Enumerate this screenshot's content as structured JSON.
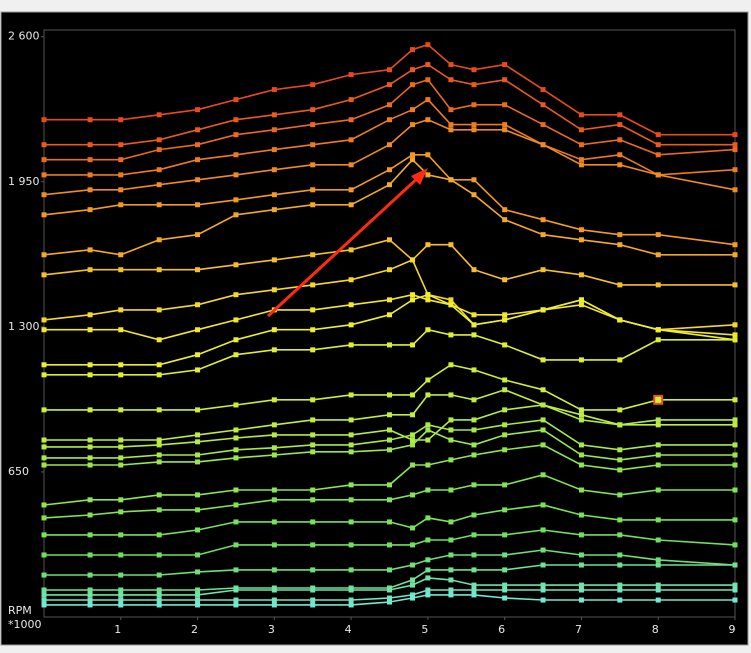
{
  "chart_data": {
    "type": "line",
    "x": [
      0,
      0.6,
      1,
      1.5,
      2,
      2.5,
      3,
      3.5,
      4,
      4.5,
      4.8,
      5,
      5.3,
      5.6,
      6,
      6.5,
      7,
      7.5,
      8,
      9
    ],
    "xlim": [
      0,
      9
    ],
    "xticks": [
      1,
      2,
      3,
      4,
      5,
      6,
      7,
      8,
      9
    ],
    "ylim": [
      0,
      2630
    ],
    "yticks": [
      650,
      {
        "value": 1300,
        "label": "1 300"
      },
      {
        "value": 1950,
        "label": "1 950"
      },
      {
        "value": 2600,
        "label": "2 600"
      }
    ],
    "ylabel": "RPM",
    "ylabel_unit": "*1000",
    "highlight": {
      "series": 12,
      "index": 18,
      "color": "#e8501e"
    },
    "series": [
      {
        "color": "#e84a1e",
        "values": [
          2228,
          2228,
          2228,
          2250,
          2273,
          2318,
          2363,
          2385,
          2430,
          2452,
          2542,
          2564,
          2475,
          2452,
          2475,
          2363,
          2250,
          2250,
          2161,
          2161
        ]
      },
      {
        "color": "#ea5a1f",
        "values": [
          2116,
          2116,
          2116,
          2138,
          2183,
          2228,
          2250,
          2273,
          2318,
          2385,
          2452,
          2475,
          2407,
          2385,
          2407,
          2295,
          2183,
          2206,
          2116,
          2116
        ]
      },
      {
        "color": "#ec6a20",
        "values": [
          2049,
          2049,
          2049,
          2094,
          2116,
          2161,
          2183,
          2206,
          2228,
          2295,
          2385,
          2407,
          2273,
          2295,
          2295,
          2206,
          2116,
          2138,
          2071,
          2094
        ]
      },
      {
        "color": "#ee7a22",
        "values": [
          1981,
          1981,
          1981,
          2004,
          2049,
          2071,
          2094,
          2116,
          2138,
          2228,
          2273,
          2318,
          2206,
          2206,
          2206,
          2116,
          2049,
          2071,
          1981,
          2004
        ]
      },
      {
        "color": "#f08a22",
        "values": [
          1892,
          1914,
          1914,
          1937,
          1959,
          1981,
          2004,
          2026,
          2026,
          2116,
          2206,
          2228,
          2183,
          2183,
          2183,
          2116,
          2026,
          2026,
          1981,
          1914
        ]
      },
      {
        "color": "#f29a24",
        "values": [
          1802,
          1825,
          1847,
          1847,
          1847,
          1869,
          1892,
          1914,
          1914,
          2004,
          2071,
          2071,
          1959,
          1959,
          1825,
          1780,
          1735,
          1713,
          1713,
          1668
        ]
      },
      {
        "color": "#f4aa26",
        "values": [
          1623,
          1645,
          1623,
          1690,
          1713,
          1802,
          1825,
          1847,
          1847,
          1937,
          2049,
          1981,
          1959,
          1892,
          1780,
          1713,
          1690,
          1668,
          1623,
          1623
        ]
      },
      {
        "color": "#f6c028",
        "values": [
          1533,
          1556,
          1556,
          1556,
          1556,
          1578,
          1600,
          1623,
          1645,
          1690,
          1600,
          1668,
          1668,
          1556,
          1511,
          1556,
          1533,
          1488,
          1488,
          1488
        ]
      },
      {
        "color": "#f6d82a",
        "values": [
          1331,
          1354,
          1376,
          1376,
          1399,
          1444,
          1466,
          1488,
          1511,
          1556,
          1600,
          1444,
          1421,
          1309,
          1331,
          1376,
          1421,
          1331,
          1287,
          1309
        ]
      },
      {
        "color": "#f4e82c",
        "values": [
          1287,
          1287,
          1287,
          1242,
          1287,
          1331,
          1376,
          1376,
          1399,
          1421,
          1444,
          1421,
          1399,
          1354,
          1354,
          1376,
          1399,
          1331,
          1287,
          1264
        ]
      },
      {
        "color": "#ecf02e",
        "values": [
          1130,
          1130,
          1130,
          1130,
          1175,
          1242,
          1287,
          1287,
          1309,
          1354,
          1421,
          1444,
          1399,
          1309,
          1331,
          1376,
          1421,
          1331,
          1287,
          1242
        ]
      },
      {
        "color": "#e0f030",
        "values": [
          1085,
          1085,
          1085,
          1085,
          1107,
          1175,
          1197,
          1197,
          1219,
          1219,
          1219,
          1287,
          1264,
          1264,
          1219,
          1152,
          1152,
          1152,
          1242,
          1242
        ]
      },
      {
        "color": "#ccf038",
        "values": [
          928,
          928,
          928,
          928,
          928,
          950,
          973,
          973,
          995,
          995,
          995,
          1062,
          1130,
          1107,
          1062,
          1018,
          928,
          928,
          973,
          973
        ]
      },
      {
        "color": "#c0ee40",
        "values": [
          793,
          793,
          793,
          793,
          816,
          838,
          861,
          883,
          883,
          906,
          906,
          995,
          995,
          973,
          1018,
          950,
          906,
          861,
          861,
          861
        ]
      },
      {
        "color": "#b4ec44",
        "values": [
          762,
          762,
          762,
          771,
          785,
          802,
          816,
          816,
          816,
          838,
          793,
          793,
          883,
          883,
          928,
          950,
          883,
          861,
          883,
          883
        ]
      },
      {
        "color": "#a8ea48",
        "values": [
          713,
          713,
          713,
          726,
          726,
          749,
          758,
          771,
          771,
          793,
          816,
          861,
          838,
          838,
          861,
          883,
          771,
          749,
          771,
          771
        ]
      },
      {
        "color": "#9ce84c",
        "values": [
          681,
          681,
          681,
          695,
          695,
          713,
          726,
          740,
          740,
          749,
          771,
          838,
          793,
          771,
          816,
          838,
          726,
          704,
          726,
          726
        ]
      },
      {
        "color": "#8ee650",
        "values": [
          502,
          525,
          525,
          547,
          547,
          569,
          569,
          569,
          592,
          592,
          681,
          681,
          704,
          726,
          749,
          771,
          681,
          659,
          681,
          681
        ]
      },
      {
        "color": "#82e454",
        "values": [
          444,
          457,
          471,
          480,
          480,
          502,
          525,
          525,
          525,
          525,
          547,
          569,
          569,
          592,
          592,
          637,
          569,
          547,
          569,
          569
        ]
      },
      {
        "color": "#78e258",
        "values": [
          368,
          368,
          368,
          368,
          390,
          426,
          426,
          426,
          426,
          426,
          399,
          444,
          426,
          457,
          480,
          502,
          457,
          435,
          435,
          435
        ]
      },
      {
        "color": "#70e060",
        "values": [
          278,
          278,
          278,
          278,
          278,
          323,
          323,
          323,
          323,
          323,
          323,
          345,
          345,
          368,
          368,
          390,
          368,
          368,
          345,
          323
        ]
      },
      {
        "color": "#6ee078",
        "values": [
          188,
          188,
          188,
          188,
          202,
          211,
          211,
          211,
          211,
          211,
          233,
          256,
          278,
          278,
          278,
          300,
          278,
          278,
          256,
          233
        ]
      },
      {
        "color": "#6ee290",
        "values": [
          121,
          121,
          121,
          121,
          121,
          130,
          130,
          130,
          130,
          130,
          166,
          211,
          211,
          211,
          211,
          233,
          233,
          233,
          233,
          233
        ]
      },
      {
        "color": "#70e4a8",
        "values": [
          99,
          99,
          99,
          99,
          99,
          121,
          121,
          121,
          121,
          121,
          143,
          175,
          166,
          143,
          143,
          143,
          143,
          143,
          143,
          143
        ]
      },
      {
        "color": "#72e6c0",
        "values": [
          76,
          76,
          76,
          76,
          76,
          76,
          76,
          76,
          76,
          85,
          99,
          121,
          121,
          121,
          121,
          121,
          121,
          121,
          121,
          121
        ]
      },
      {
        "color": "#74e8d4",
        "values": [
          54,
          54,
          54,
          54,
          54,
          54,
          54,
          54,
          54,
          67,
          85,
          99,
          99,
          99,
          85,
          76,
          76,
          76,
          76,
          76
        ]
      }
    ]
  }
}
